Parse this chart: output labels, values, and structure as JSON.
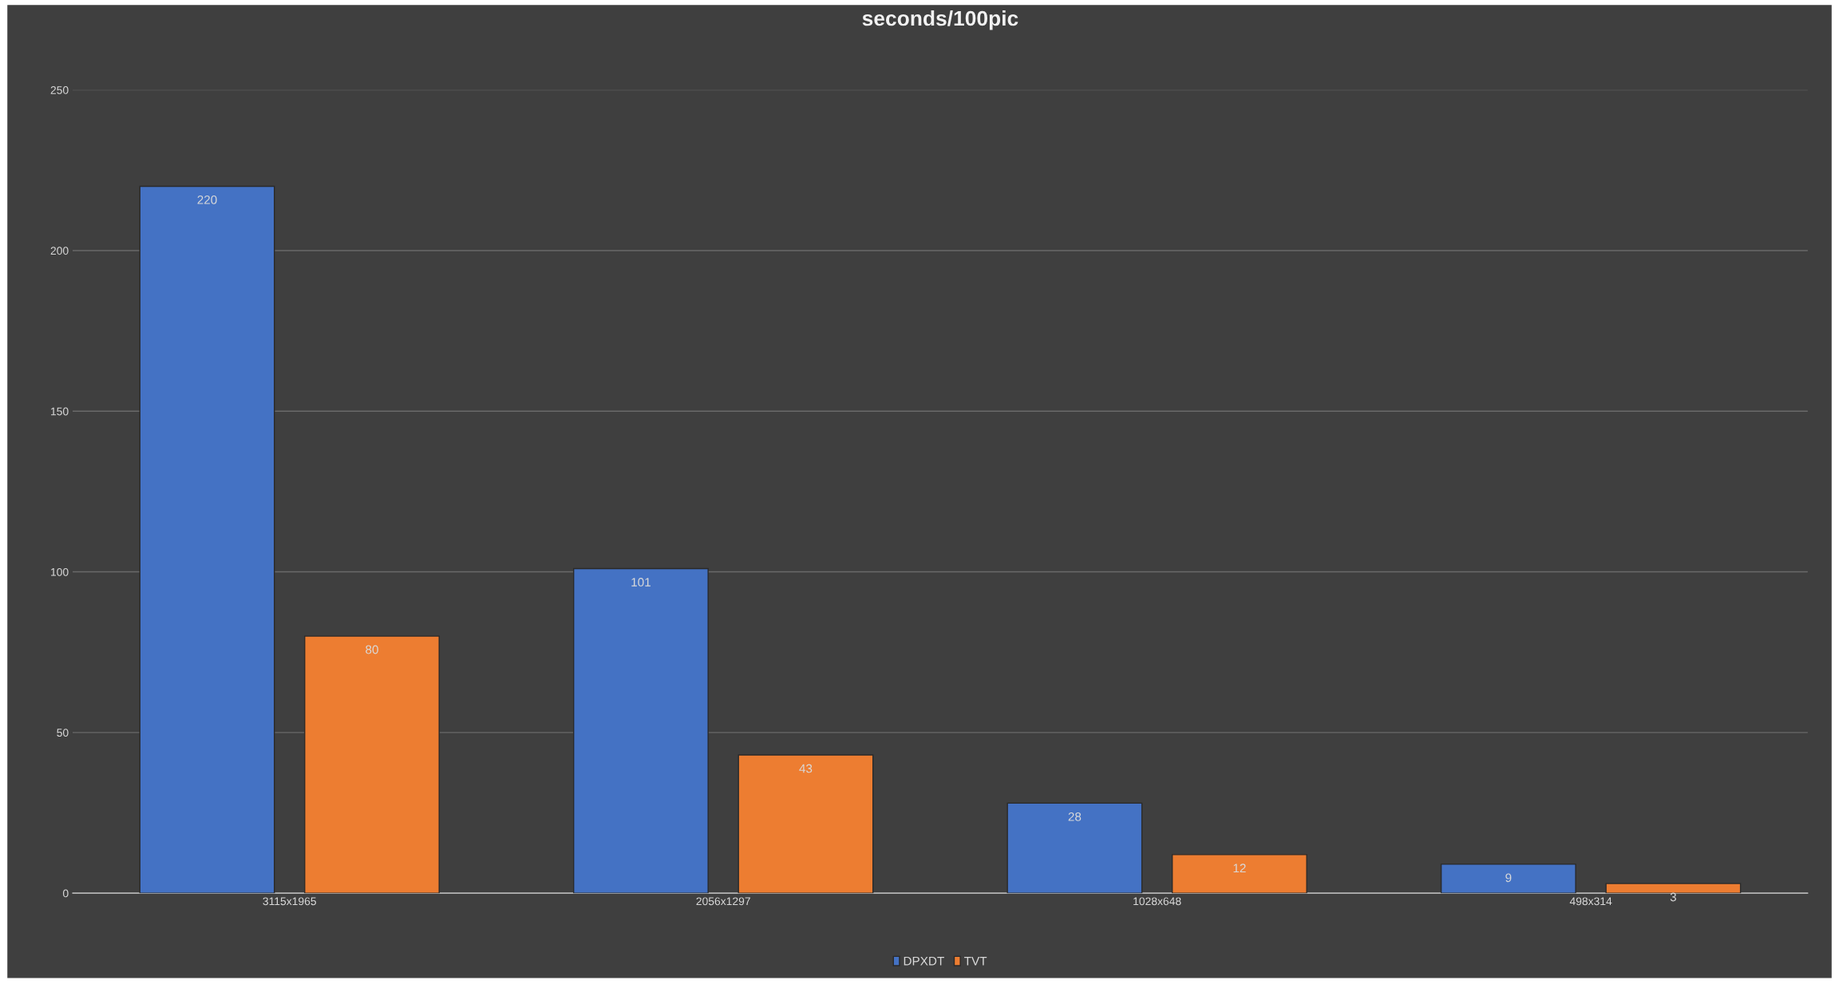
{
  "chart_data": {
    "type": "bar",
    "title": "seconds/100pic",
    "categories": [
      "3115x1965",
      "2056x1297",
      "1028x648",
      "498x314"
    ],
    "series": [
      {
        "name": "DPXDT",
        "color": "#4472c4",
        "values": [
          220,
          101,
          28,
          9
        ]
      },
      {
        "name": "TVT",
        "color": "#ed7d31",
        "values": [
          80,
          43,
          12,
          3
        ]
      }
    ],
    "ylim": [
      0,
      250
    ],
    "yticks": [
      0,
      50,
      100,
      150,
      200,
      250
    ],
    "grid": "y",
    "legend": "bottom",
    "data_labels": true
  }
}
